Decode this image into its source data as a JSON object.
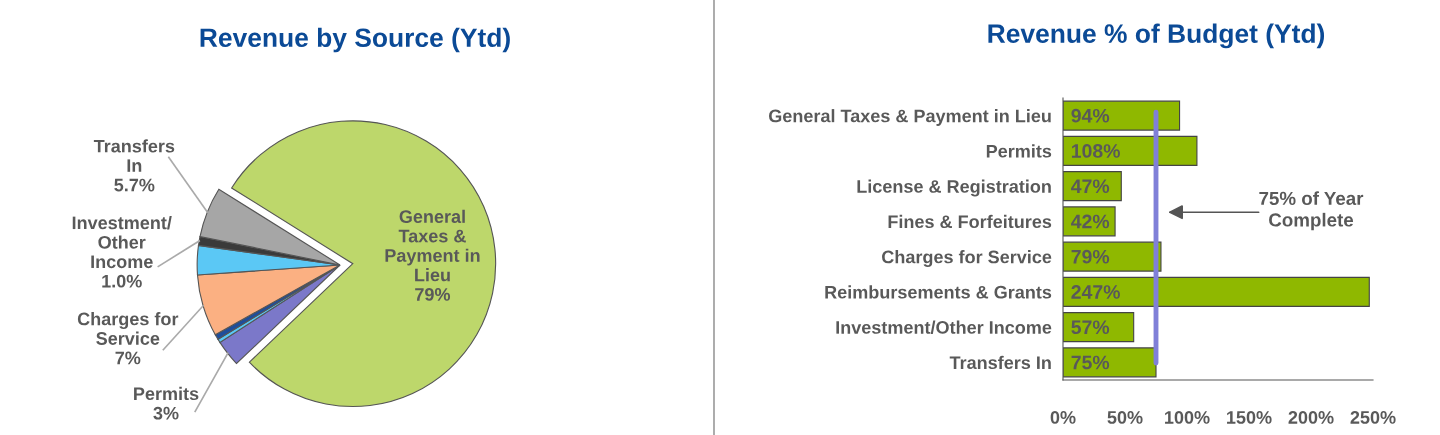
{
  "chart_data": [
    {
      "type": "pie",
      "title": "Revenue by Source (Ytd)",
      "categories": [
        "General\nTaxes &\nPayment in\nLieu",
        "Permits",
        null,
        null,
        "Charges for\nService",
        null,
        "Investment/\nOther\nIncome",
        "Transfers\nIn"
      ],
      "values": [
        79,
        3,
        0.4,
        0.6,
        7,
        3.3,
        1.0,
        5.7
      ],
      "value_labels": [
        "79%",
        "3%",
        null,
        null,
        "7%",
        null,
        "1.0%",
        "5.7%"
      ],
      "colors": [
        "#bdd76b",
        "#7b78c9",
        "#5bc8f5",
        "#1f4e9b",
        "#fbb082",
        "#5bc8f5",
        "#3a3a3a",
        "#a6a6a6"
      ]
    },
    {
      "type": "bar",
      "title": "Revenue % of Budget (Ytd)",
      "orientation": "horizontal",
      "categories": [
        "General Taxes & Payment in Lieu",
        "Permits",
        "License & Registration",
        "Fines & Forfeitures",
        "Charges for Service",
        "Reimbursements & Grants",
        "Investment/Other Income",
        "Transfers In"
      ],
      "values": [
        94,
        108,
        47,
        42,
        79,
        247,
        57,
        75
      ],
      "value_labels": [
        "94%",
        "108%",
        "47%",
        "42%",
        "79%",
        "247%",
        "57%",
        "75%"
      ],
      "color": "#8fb800",
      "xlim": [
        0,
        250
      ],
      "xticks": [
        {
          "value": 0,
          "label": "0%"
        },
        {
          "value": 50,
          "label": "50%"
        },
        {
          "value": 100,
          "label": "100%"
        },
        {
          "value": 150,
          "label": "150%"
        },
        {
          "value": 200,
          "label": "200%"
        },
        {
          "value": 250,
          "label": "250%"
        }
      ],
      "ref_lines": [
        {
          "axis": "x",
          "value": 75,
          "color": "#8080d8"
        }
      ],
      "annotations": [
        "75% of Year\nComplete"
      ],
      "grid": false
    }
  ]
}
